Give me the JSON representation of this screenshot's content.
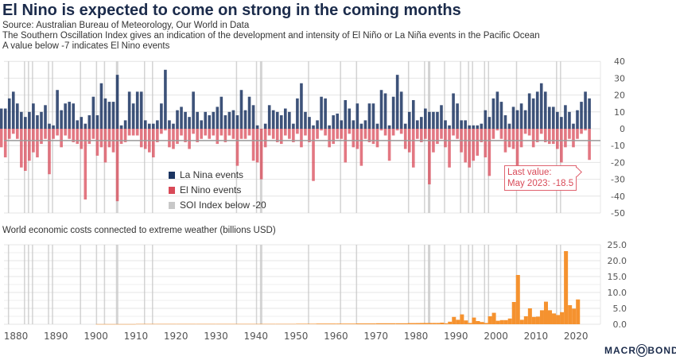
{
  "title": "El Nino is expected to come on strong in the coming months",
  "source": "Source: Australian Bureau of Meteorology, Our World in Data",
  "description": "The Southern Oscillation Index gives an indication of the development and intensity of El Niño or La Niña events in the Pacific Ocean",
  "note": "A value below -7 indicates El Nino events",
  "brand": "MACROBOND",
  "colors": {
    "la_nina": "#1b3461",
    "el_nino": "#d94a58",
    "soi_band": "#c8c8c8",
    "costs": "#f5922f"
  },
  "chart_data": [
    {
      "type": "bar",
      "title": "",
      "ylim": [
        -50,
        40
      ],
      "yticks": [
        40,
        30,
        20,
        10,
        0,
        -10,
        -20,
        -30,
        -40,
        -50
      ],
      "threshold": -7,
      "grid": true,
      "legend_placement": "bottom-center",
      "legend": [
        "La Nina events",
        "El Nino events",
        "SOI Index below -20"
      ],
      "annotation": {
        "line1": "Last value:",
        "line2": "May 2023: -18.5"
      },
      "x_start_year": 1876,
      "positive_peaks": [
        12,
        12,
        18,
        22,
        15,
        10,
        7,
        10,
        15,
        8,
        10,
        14,
        3,
        2,
        23,
        11,
        15,
        16,
        15,
        5,
        7,
        3,
        8,
        19,
        8,
        27,
        18,
        16,
        16,
        32,
        2,
        5,
        22,
        15,
        22,
        22,
        5,
        3,
        3,
        5,
        15,
        35,
        5,
        3,
        11,
        13,
        10,
        7,
        22,
        10,
        5,
        10,
        8,
        10,
        13,
        19,
        8,
        10,
        11,
        8,
        23,
        11,
        19,
        14,
        2,
        0,
        3,
        14,
        11,
        10,
        8,
        12,
        10,
        3,
        18,
        27,
        10,
        7,
        2,
        5,
        19,
        18,
        2,
        8,
        9,
        5,
        17,
        12,
        5,
        15,
        3,
        5,
        15,
        15,
        3,
        23,
        21,
        2,
        19,
        32,
        22,
        3,
        10,
        17,
        5,
        7,
        12,
        10,
        10,
        10,
        14,
        5,
        2,
        21,
        15,
        5,
        5,
        2,
        2,
        2,
        3,
        11,
        7,
        18,
        22,
        16,
        8,
        3,
        13,
        11,
        15,
        11,
        21,
        18,
        22,
        27,
        22,
        13,
        13,
        10,
        7,
        14,
        10,
        3,
        11,
        16,
        22,
        18
      ],
      "negative_troughs": [
        -11,
        -17,
        -6,
        -3,
        -6,
        -23,
        -25,
        -19,
        -14,
        -17,
        -9,
        -6,
        -27,
        -6,
        -4,
        -11,
        -4,
        -6,
        -8,
        -9,
        -12,
        -42,
        -9,
        -6,
        -16,
        -11,
        -20,
        -11,
        -14,
        -43,
        -9,
        -8,
        -4,
        -4,
        -4,
        -11,
        -12,
        -14,
        -17,
        -8,
        -3,
        -1,
        -11,
        -12,
        -9,
        -4,
        -8,
        -12,
        -3,
        -8,
        -6,
        -4,
        -6,
        -4,
        -9,
        -4,
        -8,
        -4,
        -6,
        -22,
        -6,
        -6,
        -4,
        -19,
        -20,
        -30,
        -11,
        -4,
        -6,
        -8,
        -9,
        -4,
        -6,
        -8,
        -3,
        -11,
        -4,
        -8,
        -31,
        -6,
        -1,
        -4,
        -11,
        -9,
        -6,
        -6,
        -20,
        -3,
        -11,
        -12,
        -22,
        -6,
        -8,
        -9,
        -11,
        -1,
        -4,
        -19,
        -4,
        -1,
        -3,
        -12,
        -14,
        -23,
        -6,
        -8,
        -6,
        -33,
        -14,
        -9,
        -6,
        -11,
        -23,
        -4,
        -6,
        -14,
        -20,
        -23,
        -19,
        -16,
        -8,
        -17,
        -28,
        -6,
        -1,
        -6,
        -14,
        -11,
        -12,
        -28,
        -11,
        -3,
        -4,
        -11,
        -8,
        -3,
        -8,
        -9,
        -9,
        -12,
        -20,
        -11,
        -6,
        -11,
        -6,
        -3,
        -1,
        -18.5
      ],
      "soi_below_minus20_years": [
        1878,
        1882,
        1883,
        1884,
        1888,
        1889,
        1896,
        1900,
        1902,
        1905,
        1912,
        1914,
        1935,
        1940,
        1941,
        1953,
        1961,
        1965,
        1978,
        1982,
        1983,
        1987,
        1991,
        1993,
        1994,
        1997,
        1998,
        2005,
        2015,
        2016
      ]
    },
    {
      "type": "bar",
      "title": "World economic costs connected to extreme weather (billions USD)",
      "ylim": [
        0,
        25
      ],
      "yticks": [
        "25.0",
        "20.0",
        "15.0",
        "10.0",
        "5.0",
        "0.0"
      ],
      "xlim": [
        1876,
        2027
      ],
      "xticks": [
        "1880",
        "1890",
        "1900",
        "1910",
        "1920",
        "1930",
        "1940",
        "1950",
        "1960",
        "1970",
        "1980",
        "1990",
        "2000",
        "2010",
        "2020"
      ],
      "years": [
        1900,
        1905,
        1910,
        1915,
        1920,
        1925,
        1930,
        1935,
        1940,
        1945,
        1950,
        1955,
        1960,
        1965,
        1970,
        1975,
        1978,
        1980,
        1981,
        1982,
        1983,
        1984,
        1985,
        1986,
        1987,
        1988,
        1989,
        1990,
        1991,
        1992,
        1993,
        1994,
        1995,
        1996,
        1997,
        1998,
        1999,
        2000,
        2001,
        2002,
        2003,
        2004,
        2005,
        2006,
        2007,
        2008,
        2009,
        2010,
        2011,
        2012,
        2013,
        2014,
        2015,
        2016,
        2017,
        2018,
        2019,
        2020
      ],
      "values": [
        0.05,
        0.05,
        0.1,
        0.1,
        0.1,
        0.1,
        0.1,
        0.1,
        0.1,
        0.1,
        0.15,
        0.2,
        0.2,
        0.25,
        0.3,
        0.3,
        0.35,
        0.35,
        0.4,
        0.4,
        0.4,
        0.4,
        0.4,
        0.5,
        0.3,
        0.8,
        2.3,
        1.4,
        3.1,
        1.2,
        0.4,
        2.1,
        1.0,
        0.7,
        0.4,
        2.5,
        3.6,
        1.1,
        1.3,
        1.3,
        1.8,
        7.0,
        15.5,
        1.4,
        2.5,
        5.0,
        2.3,
        2.4,
        4.4,
        7.1,
        4.4,
        3.4,
        2.9,
        3.8,
        23.0,
        6.0,
        4.9,
        7.8
      ]
    }
  ]
}
